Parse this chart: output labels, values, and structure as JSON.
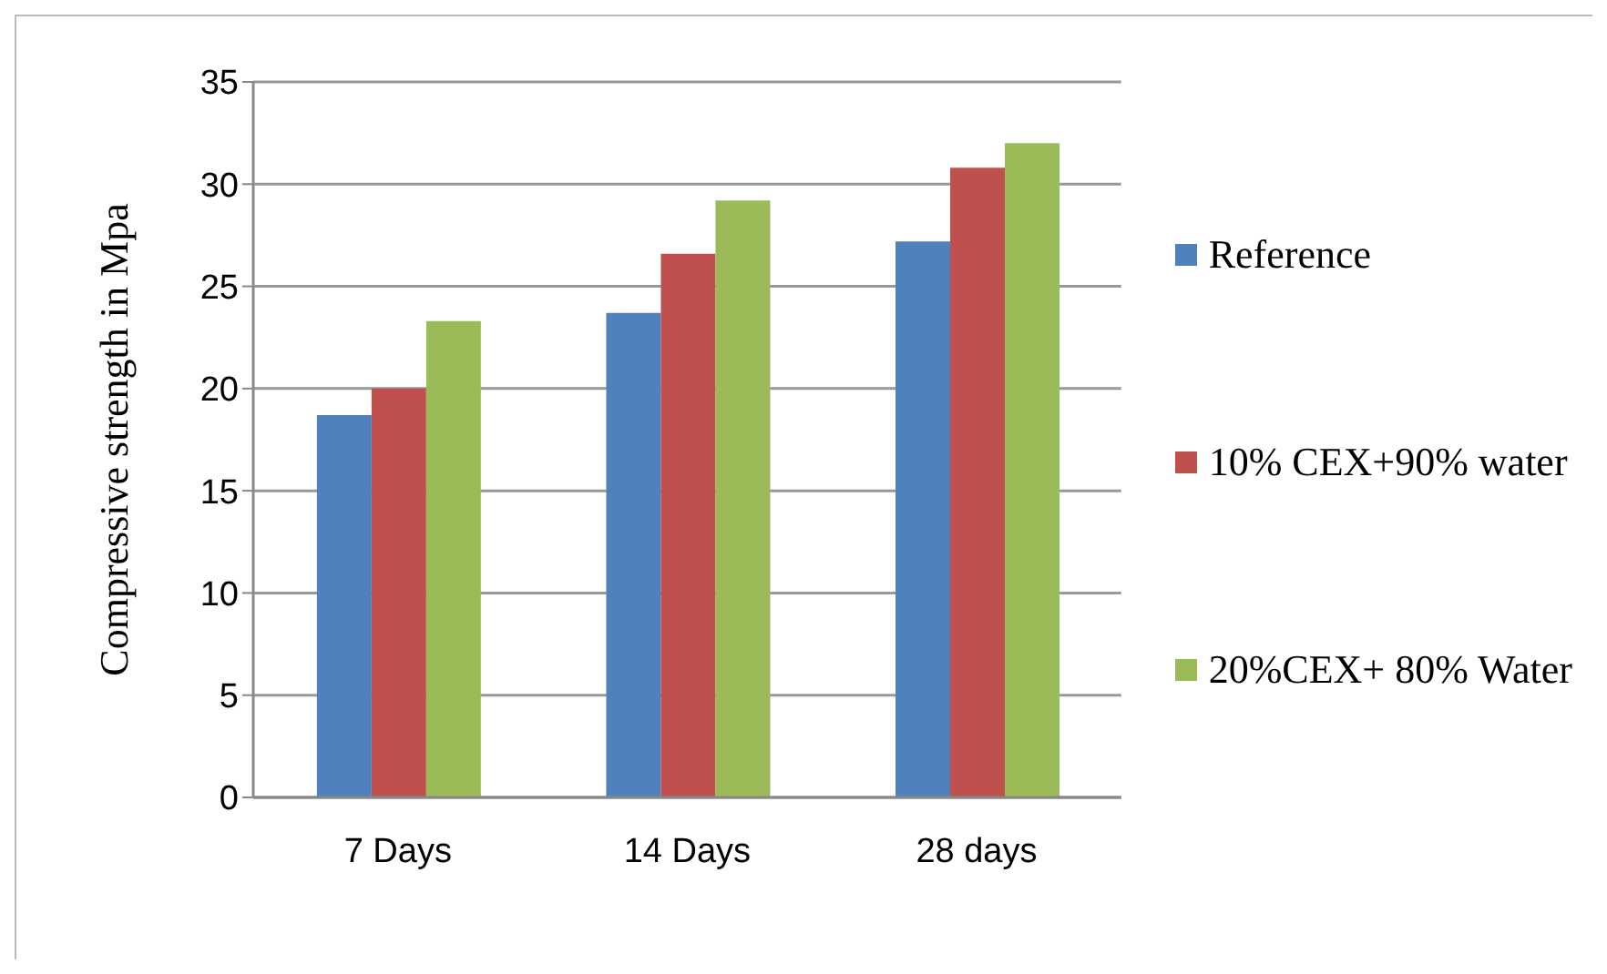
{
  "chart_data": {
    "type": "bar",
    "ylabel": "Compressive strength in Mpa",
    "categories": [
      "7 Days",
      "14 Days",
      "28 days"
    ],
    "series": [
      {
        "name": "Reference",
        "color": "#4f81bd",
        "values": [
          18.7,
          23.7,
          27.2
        ]
      },
      {
        "name": "10% CEX+90% water",
        "color": "#c0504d",
        "values": [
          20.0,
          26.6,
          30.8
        ]
      },
      {
        "name": "20%CEX+ 80% Water",
        "color": "#9bbb59",
        "values": [
          23.3,
          29.2,
          32.0
        ]
      }
    ],
    "ylim": [
      0,
      35
    ],
    "yticks": [
      0,
      5,
      10,
      15,
      20,
      25,
      30,
      35
    ],
    "grid": "y",
    "legend": "right"
  }
}
